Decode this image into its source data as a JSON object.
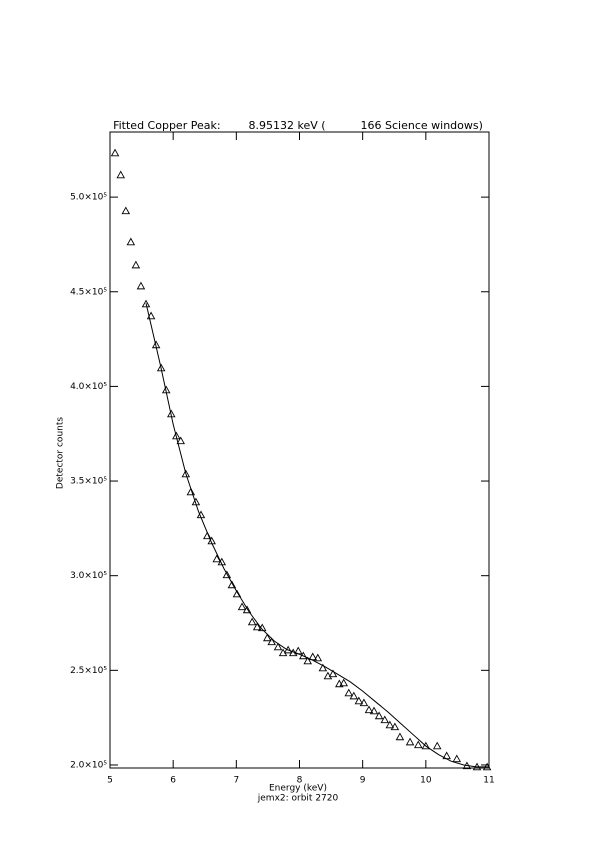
{
  "chart_data": {
    "type": "scatter",
    "title": "Fitted Copper Peak:        8.95132 keV (          166 Science windows)",
    "x_label": "Energy (keV)",
    "subtitle": "jemx2: orbit 2720",
    "y_label": "Detector counts",
    "xlim": [
      5,
      11
    ],
    "ylim": [
      198400,
      534400
    ],
    "xticks": [
      5,
      6,
      7,
      8,
      9,
      10,
      11
    ],
    "yticks": [
      {
        "value": 200000,
        "label": "2.0×10⁵"
      },
      {
        "value": 250000,
        "label": "2.5×10⁵"
      },
      {
        "value": 300000,
        "label": "3.0×10⁵"
      },
      {
        "value": 350000,
        "label": "3.5×10⁵"
      },
      {
        "value": 400000,
        "label": "4.0×10⁵"
      },
      {
        "value": 450000,
        "label": "4.5×10⁵"
      },
      {
        "value": 500000,
        "label": "5.0×10⁵"
      }
    ],
    "series": [
      {
        "mode": "markers",
        "marker": "triangle",
        "color": "#000000",
        "x": [
          5.08,
          5.17,
          5.25,
          5.33,
          5.41,
          5.49,
          5.57,
          5.65,
          5.73,
          5.81,
          5.89,
          5.97,
          6.05,
          6.12,
          6.2,
          6.28,
          6.36,
          6.44,
          6.54,
          6.61,
          6.69,
          6.77,
          6.85,
          6.93,
          7.01,
          7.09,
          7.17,
          7.25,
          7.33,
          7.41,
          7.49,
          7.56,
          7.66,
          7.74,
          7.82,
          7.9,
          7.98,
          8.06,
          8.13,
          8.21,
          8.29,
          8.37,
          8.45,
          8.53,
          8.63,
          8.7,
          8.78,
          8.86,
          8.94,
          9.02,
          9.1,
          9.18,
          9.26,
          9.35,
          9.43,
          9.51,
          9.59,
          9.75,
          9.88,
          10.0,
          10.18,
          10.33,
          10.49,
          10.65,
          10.81,
          10.97
        ],
        "values": [
          523300,
          511700,
          492700,
          476300,
          464100,
          453000,
          443500,
          437200,
          421900,
          409700,
          398100,
          385400,
          373800,
          371200,
          353700,
          344200,
          338900,
          332100,
          321000,
          318300,
          308800,
          307200,
          300400,
          295100,
          290300,
          283500,
          281900,
          275500,
          272900,
          272400,
          267100,
          265000,
          262300,
          259200,
          260700,
          259200,
          260200,
          257600,
          254900,
          257100,
          256500,
          251200,
          247000,
          248100,
          242800,
          243300,
          238000,
          236400,
          233800,
          232800,
          229100,
          228500,
          225900,
          223800,
          221100,
          220100,
          214800,
          212100,
          210600,
          210000,
          210000,
          204800,
          203200,
          199500,
          198900,
          198900
        ]
      },
      {
        "mode": "line",
        "color": "#000000",
        "x": [
          5.57,
          5.8,
          6.0,
          6.2,
          6.4,
          6.6,
          6.8,
          7.0,
          7.2,
          7.4,
          7.6,
          7.8,
          8.0,
          8.2,
          8.4,
          8.6,
          8.8,
          9.0,
          9.2,
          9.4,
          9.6,
          9.8,
          10.0,
          10.2,
          10.4,
          10.6,
          10.8,
          11.0
        ],
        "values": [
          444000,
          411000,
          380000,
          354000,
          334000,
          318000,
          304000,
          292000,
          281000,
          272000,
          265500,
          261000,
          258500,
          255500,
          252000,
          248000,
          244000,
          239000,
          233500,
          228000,
          222000,
          216000,
          210000,
          205500,
          202000,
          200000,
          199000,
          199000
        ]
      }
    ]
  }
}
